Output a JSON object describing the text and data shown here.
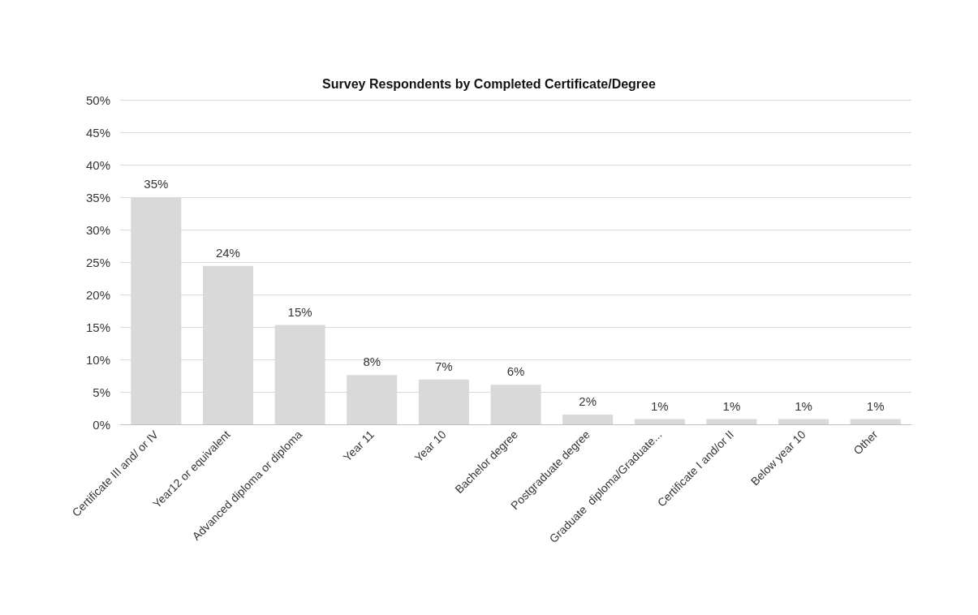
{
  "chart_data": {
    "type": "bar",
    "title": "Survey Respondents by Completed Certificate/Degree",
    "categories": [
      "Certificate III and/ or IV",
      "Year12 or equivalent",
      "Advanced diploma or diploma",
      "Year 11",
      "Year 10",
      "Bachelor degree",
      "Postgraduate degree",
      "Graduate  diploma/Graduate...",
      "Certificate I and/or II",
      "Below year 10",
      "Other"
    ],
    "values": [
      35,
      24.4,
      15.3,
      7.6,
      6.9,
      6.1,
      1.5,
      0.8,
      0.8,
      0.8,
      0.8
    ],
    "value_labels": [
      "35%",
      "24%",
      "15%",
      "8%",
      "7%",
      "6%",
      "2%",
      "1%",
      "1%",
      "1%",
      "1%"
    ],
    "color": "#d9d9d9",
    "ylim": [
      0,
      50
    ],
    "yticks": [
      {
        "value": 0,
        "label": "0%"
      },
      {
        "value": 5,
        "label": "5%"
      },
      {
        "value": 10,
        "label": "10%"
      },
      {
        "value": 15,
        "label": "15%"
      },
      {
        "value": 20,
        "label": "20%"
      },
      {
        "value": 25,
        "label": "25%"
      },
      {
        "value": 30,
        "label": "30%"
      },
      {
        "value": 35,
        "label": "35%"
      },
      {
        "value": 40,
        "label": "40%"
      },
      {
        "value": 45,
        "label": "45%"
      },
      {
        "value": 50,
        "label": "50%"
      }
    ],
    "grid": true
  }
}
